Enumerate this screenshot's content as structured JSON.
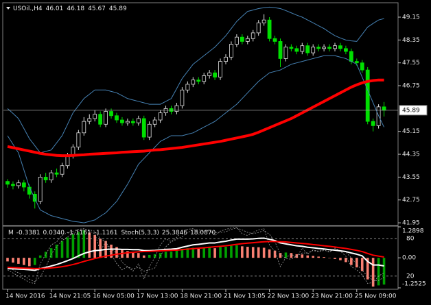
{
  "chart_data": [
    {
      "type": "candlestick",
      "title": "USOil.,H4",
      "categories": [
        "14 Nov 2016",
        null,
        null,
        null,
        null,
        null,
        null,
        null,
        "14 Nov 21:05",
        null,
        null,
        null,
        null,
        null,
        null,
        null,
        "16 Nov 05:00",
        null,
        null,
        null,
        null,
        null,
        null,
        null,
        "17 Nov 13:00",
        null,
        null,
        null,
        null,
        null,
        null,
        null,
        "18 Nov 21:00",
        null,
        null,
        null,
        null,
        null,
        null,
        null,
        "21 Nov 13:05",
        null,
        null,
        null,
        null,
        null,
        null,
        null,
        "22 Nov 13:00",
        null,
        null,
        null,
        null,
        null,
        null,
        null,
        "23 Nov 21:00",
        null,
        null,
        null,
        null,
        null,
        null,
        null,
        "25 Nov 09:00",
        null,
        null,
        null,
        null,
        null
      ],
      "ohlc": {
        "open": [
          43.4,
          43.3,
          43.25,
          43.35,
          43.2,
          42.95,
          42.7,
          43.55,
          43.45,
          43.7,
          43.65,
          43.95,
          44.3,
          44.6,
          45.1,
          45.5,
          45.6,
          45.75,
          45.4,
          45.85,
          45.7,
          45.55,
          45.45,
          45.5,
          45.45,
          45.6,
          44.95,
          45.4,
          45.55,
          45.8,
          45.95,
          45.85,
          46.05,
          46.6,
          46.8,
          46.95,
          46.9,
          47.1,
          47.2,
          47.05,
          47.6,
          47.75,
          48.2,
          48.45,
          48.3,
          48.4,
          48.6,
          48.95,
          49.05,
          48.4,
          48.3,
          47.7,
          48.1,
          48.05,
          47.95,
          48.15,
          47.9,
          48.1,
          48.05,
          48.1,
          48.05,
          48.15,
          48.05,
          47.95,
          47.6,
          47.55,
          47.3,
          45.5,
          45.35,
          46.01
        ],
        "high": [
          43.48,
          43.4,
          43.45,
          43.45,
          43.3,
          43.05,
          43.65,
          43.7,
          43.8,
          43.85,
          44.05,
          44.4,
          44.7,
          45.2,
          45.65,
          45.75,
          45.9,
          45.85,
          45.95,
          45.95,
          45.8,
          45.65,
          45.6,
          45.6,
          45.7,
          45.7,
          45.5,
          45.65,
          45.9,
          46.05,
          46.05,
          46.15,
          46.7,
          46.9,
          47.05,
          47.05,
          47.2,
          47.3,
          47.3,
          47.7,
          47.85,
          48.3,
          48.55,
          48.55,
          48.5,
          48.7,
          49.05,
          49.25,
          49.15,
          48.5,
          48.4,
          48.2,
          48.2,
          48.15,
          48.25,
          48.25,
          48.2,
          48.2,
          48.2,
          48.2,
          48.25,
          48.25,
          48.15,
          48.05,
          47.7,
          47.65,
          47.4,
          45.6,
          46.1,
          46.18
        ],
        "low": [
          43.18,
          43.12,
          43.15,
          43.05,
          42.8,
          42.45,
          42.6,
          43.35,
          43.35,
          43.55,
          43.55,
          43.85,
          44.2,
          44.5,
          45.0,
          45.4,
          45.5,
          45.3,
          45.3,
          45.6,
          45.45,
          45.35,
          45.35,
          45.35,
          45.35,
          44.85,
          44.85,
          45.3,
          45.45,
          45.7,
          45.75,
          45.75,
          45.95,
          46.5,
          46.7,
          46.8,
          46.8,
          47.0,
          46.95,
          46.95,
          47.5,
          47.65,
          48.1,
          48.2,
          48.2,
          48.3,
          48.5,
          48.85,
          48.3,
          48.2,
          47.4,
          47.6,
          47.95,
          47.85,
          47.85,
          47.8,
          47.8,
          47.95,
          47.95,
          47.95,
          47.95,
          47.95,
          47.85,
          47.5,
          47.45,
          47.2,
          45.4,
          45.15,
          45.25,
          45.67
        ],
        "close": [
          43.3,
          43.25,
          43.35,
          43.2,
          42.95,
          42.7,
          43.55,
          43.45,
          43.7,
          43.65,
          43.95,
          44.3,
          44.6,
          45.1,
          45.5,
          45.6,
          45.75,
          45.4,
          45.85,
          45.7,
          45.55,
          45.45,
          45.5,
          45.45,
          45.6,
          44.95,
          45.4,
          45.55,
          45.8,
          45.95,
          45.85,
          46.05,
          46.6,
          46.8,
          46.95,
          46.9,
          47.1,
          47.2,
          47.05,
          47.6,
          47.75,
          48.2,
          48.45,
          48.3,
          48.4,
          48.6,
          48.95,
          49.05,
          48.4,
          48.3,
          47.7,
          48.1,
          48.05,
          47.95,
          48.15,
          47.9,
          48.1,
          48.05,
          48.1,
          48.05,
          48.15,
          48.05,
          47.95,
          47.6,
          47.55,
          47.3,
          45.5,
          45.35,
          46.01,
          45.89
        ]
      },
      "bull_color": "#000000",
      "bull_outline": "#e0e0e0",
      "bear_color": "#00e000",
      "ylim": [
        41.88,
        49.63
      ],
      "yticks": [
        49.15,
        48.35,
        47.55,
        46.75,
        45.15,
        44.35,
        43.55,
        42.75,
        41.95
      ],
      "price_line": true,
      "overlays": [
        {
          "color": "#4682b4",
          "width": 1,
          "values": [
            45.95,
            45.78,
            45.6,
            45.25,
            44.9,
            44.65,
            44.4,
            44.45,
            44.5,
            44.75,
            45.0,
            45.4,
            45.8,
            46.05,
            46.3,
            46.45,
            46.6,
            46.6,
            46.6,
            46.55,
            46.5,
            46.4,
            46.3,
            46.25,
            46.2,
            46.15,
            46.1,
            46.1,
            46.1,
            46.2,
            46.3,
            46.65,
            47.0,
            47.25,
            47.5,
            47.65,
            47.8,
            47.95,
            48.1,
            48.3,
            48.5,
            48.75,
            49.0,
            49.18,
            49.35,
            49.4,
            49.45,
            49.48,
            49.5,
            49.48,
            49.45,
            49.38,
            49.3,
            49.22,
            49.15,
            49.05,
            48.95,
            48.85,
            48.75,
            48.62,
            48.5,
            48.42,
            48.35,
            48.32,
            48.3,
            48.55,
            48.8,
            48.93,
            49.05,
            49.1
          ]
        },
        {
          "color": "#4682b4",
          "width": 1,
          "values": [
            45.0,
            44.7,
            44.4,
            43.8,
            43.2,
            42.8,
            42.4,
            42.3,
            42.2,
            42.15,
            42.1,
            42.05,
            42.0,
            41.98,
            41.95,
            42.0,
            42.05,
            42.18,
            42.3,
            42.5,
            42.7,
            43.0,
            43.3,
            43.65,
            44.0,
            44.2,
            44.4,
            44.6,
            44.8,
            44.9,
            45.0,
            45.0,
            45.0,
            45.05,
            45.1,
            45.2,
            45.3,
            45.4,
            45.5,
            45.65,
            45.8,
            45.95,
            46.1,
            46.3,
            46.5,
            46.7,
            46.9,
            47.05,
            47.2,
            47.25,
            47.3,
            47.4,
            47.5,
            47.55,
            47.6,
            47.65,
            47.7,
            47.75,
            47.8,
            47.8,
            47.8,
            47.75,
            47.7,
            47.6,
            47.5,
            47.05,
            46.6,
            46.15,
            45.7,
            45.3
          ]
        },
        {
          "color": "#ff0000",
          "width": 4,
          "values": [
            44.62,
            44.58,
            44.54,
            44.5,
            44.46,
            44.42,
            44.38,
            44.35,
            44.33,
            44.31,
            44.3,
            44.3,
            44.31,
            44.32,
            44.33,
            44.35,
            44.36,
            44.37,
            44.38,
            44.39,
            44.4,
            44.42,
            44.43,
            44.44,
            44.45,
            44.46,
            44.48,
            44.5,
            44.51,
            44.53,
            44.55,
            44.57,
            44.59,
            44.62,
            44.65,
            44.68,
            44.71,
            44.74,
            44.77,
            44.8,
            44.84,
            44.88,
            44.92,
            44.96,
            45.0,
            45.05,
            45.12,
            45.2,
            45.28,
            45.36,
            45.44,
            45.52,
            45.6,
            45.7,
            45.8,
            45.9,
            46.0,
            46.1,
            46.2,
            46.3,
            46.4,
            46.5,
            46.6,
            46.7,
            46.78,
            46.85,
            46.9,
            46.93,
            46.95,
            46.95
          ]
        }
      ]
    },
    {
      "type": "oscillator",
      "header": {
        "name": "M",
        "values": [
          -0.3381,
          {
            "value": 0.034,
            "label": "0.0340"
          },
          -1.1161,
          -1.1161
        ]
      },
      "ylim": [
        -1.2525,
        1.2898
      ],
      "yticks": [
        1.2898,
        {
          "value": 0,
          "label": "0.00"
        },
        -1.2525
      ],
      "histogram": {
        "colors": [
          "#00a000",
          "#fa8072"
        ],
        "values": [
          -0.15,
          -0.2,
          -0.25,
          -0.3,
          -0.35,
          -0.3,
          0.1,
          0.25,
          0.4,
          0.55,
          0.7,
          0.85,
          0.98,
          1.08,
          1.15,
          1.05,
          0.95,
          0.8,
          0.7,
          0.55,
          0.45,
          0.35,
          0.28,
          0.22,
          0.2,
          0.1,
          0.12,
          0.15,
          0.2,
          0.25,
          0.26,
          0.3,
          0.38,
          0.4,
          0.42,
          0.4,
          0.41,
          0.42,
          0.4,
          0.45,
          0.46,
          0.5,
          0.52,
          0.48,
          0.46,
          0.45,
          0.44,
          0.42,
          0.35,
          0.3,
          0.2,
          0.22,
          0.2,
          0.15,
          0.14,
          0.1,
          0.08,
          0.05,
          0.03,
          0.0,
          -0.05,
          -0.1,
          -0.18,
          -0.3,
          -0.4,
          -0.55,
          -0.9,
          -1.2,
          -1.15,
          -1.1161
        ]
      },
      "lines": [
        {
          "color": "#ffffff",
          "width": 2,
          "values": [
            -0.45,
            -0.46,
            -0.47,
            -0.48,
            -0.5,
            -0.52,
            -0.45,
            -0.4,
            -0.34,
            -0.28,
            -0.2,
            -0.12,
            -0.03,
            0.08,
            0.18,
            0.25,
            0.3,
            0.32,
            0.35,
            0.36,
            0.36,
            0.35,
            0.35,
            0.34,
            0.34,
            0.3,
            0.3,
            0.31,
            0.33,
            0.35,
            0.36,
            0.38,
            0.44,
            0.49,
            0.54,
            0.56,
            0.59,
            0.62,
            0.62,
            0.66,
            0.69,
            0.74,
            0.78,
            0.78,
            0.78,
            0.79,
            0.81,
            0.82,
            0.77,
            0.72,
            0.62,
            0.58,
            0.54,
            0.5,
            0.48,
            0.44,
            0.42,
            0.39,
            0.37,
            0.34,
            0.32,
            0.29,
            0.26,
            0.2,
            0.15,
            0.08,
            -0.15,
            -0.3,
            -0.3,
            -0.3381
          ]
        },
        {
          "color": "#ff0000",
          "width": 2,
          "values": [
            -0.4,
            -0.41,
            -0.42,
            -0.43,
            -0.44,
            -0.45,
            -0.45,
            -0.44,
            -0.42,
            -0.4,
            -0.37,
            -0.33,
            -0.28,
            -0.22,
            -0.15,
            -0.09,
            -0.03,
            0.02,
            0.07,
            0.11,
            0.15,
            0.18,
            0.21,
            0.23,
            0.25,
            0.26,
            0.27,
            0.28,
            0.29,
            0.3,
            0.31,
            0.32,
            0.34,
            0.36,
            0.38,
            0.4,
            0.42,
            0.44,
            0.46,
            0.48,
            0.5,
            0.53,
            0.56,
            0.59,
            0.61,
            0.63,
            0.65,
            0.67,
            0.68,
            0.68,
            0.67,
            0.66,
            0.64,
            0.62,
            0.6,
            0.58,
            0.55,
            0.53,
            0.5,
            0.48,
            0.45,
            0.42,
            0.39,
            0.35,
            0.31,
            0.26,
            0.18,
            0.11,
            0.07,
            0.034
          ]
        }
      ],
      "stoch": {
        "name": "Stoch(5,3,3)",
        "header_values": [
          25.3846,
          {
            "value": 18.087,
            "label": "18.0870"
          }
        ],
        "ylim": [
          0,
          100
        ],
        "yticks": [
          80,
          20
        ],
        "color": "#a0a0a0",
        "lines": [
          {
            "values": [
              30,
              25,
              20,
              15,
              10,
              8,
              40,
              55,
              70,
              75,
              85,
              90,
              92,
              95,
              96,
              92,
              88,
              60,
              75,
              55,
              40,
              30,
              35,
              28,
              40,
              15,
              35,
              50,
              70,
              80,
              75,
              82,
              92,
              95,
              96,
              90,
              92,
              94,
              85,
              92,
              95,
              97,
              98,
              88,
              85,
              90,
              94,
              96,
              70,
              60,
              35,
              50,
              55,
              50,
              65,
              55,
              62,
              60,
              62,
              58,
              65,
              60,
              52,
              35,
              30,
              22,
              8,
              10,
              20,
              25.3846
            ]
          },
          {
            "values": [
              35,
              30,
              25,
              20,
              15,
              11,
              19,
              34,
              55,
              67,
              77,
              83,
              89,
              92,
              94,
              94,
              92,
              80,
              74,
              63,
              57,
              42,
              35,
              31,
              34,
              28,
              30,
              33,
              52,
              67,
              75,
              79,
              83,
              90,
              94,
              94,
              93,
              92,
              90,
              90,
              91,
              95,
              97,
              94,
              90,
              88,
              90,
              93,
              87,
              75,
              55,
              48,
              47,
              52,
              57,
              57,
              61,
              59,
              61,
              60,
              62,
              61,
              59,
              49,
              39,
              29,
              20,
              13,
              13,
              18.087
            ]
          }
        ]
      }
    }
  ]
}
